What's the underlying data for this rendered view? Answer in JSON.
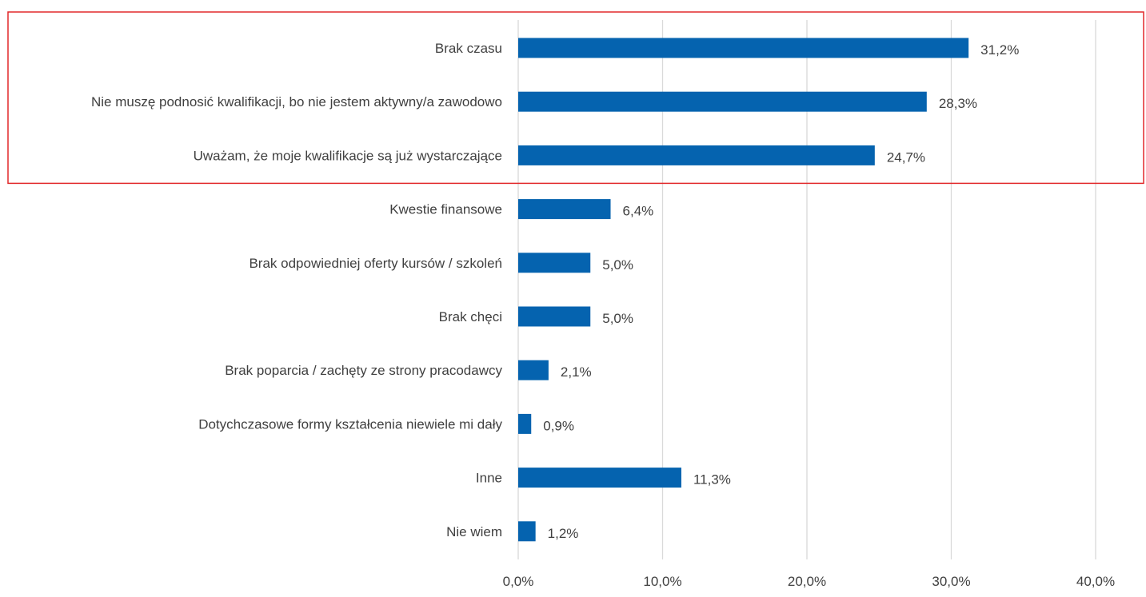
{
  "chart_data": {
    "type": "bar",
    "orientation": "horizontal",
    "categories": [
      "Brak czasu",
      "Nie muszę podnosić kwalifikacji, bo nie jestem aktywny/a zawodowo",
      "Uważam, że moje kwalifikacje są już wystarczające",
      "Kwestie finansowe",
      "Brak odpowiedniej oferty kursów / szkoleń",
      "Brak chęci",
      "Brak poparcia / zachęty ze strony pracodawcy",
      "Dotychczasowe formy kształcenia niewiele mi dały",
      "Inne",
      "Nie wiem"
    ],
    "values": [
      31.2,
      28.3,
      24.7,
      6.4,
      5.0,
      5.0,
      2.1,
      0.9,
      11.3,
      1.2
    ],
    "value_labels": [
      "31,2%",
      "28,3%",
      "24,7%",
      "6,4%",
      "5,0%",
      "5,0%",
      "2,1%",
      "0,9%",
      "11,3%",
      "1,2%"
    ],
    "xlim": [
      0,
      40
    ],
    "xticks": [
      0,
      10,
      20,
      30,
      40
    ],
    "xtick_labels": [
      "0,0%",
      "10,0%",
      "20,0%",
      "30,0%",
      "40,0%"
    ],
    "grid": "vertical",
    "legend": "none",
    "highlight_box_categories": [
      0,
      1,
      2
    ],
    "colors": {
      "bar": "#0563AF",
      "grid": "#D9D9D9",
      "text": "#404040",
      "highlight_box": "#E2282A"
    }
  }
}
